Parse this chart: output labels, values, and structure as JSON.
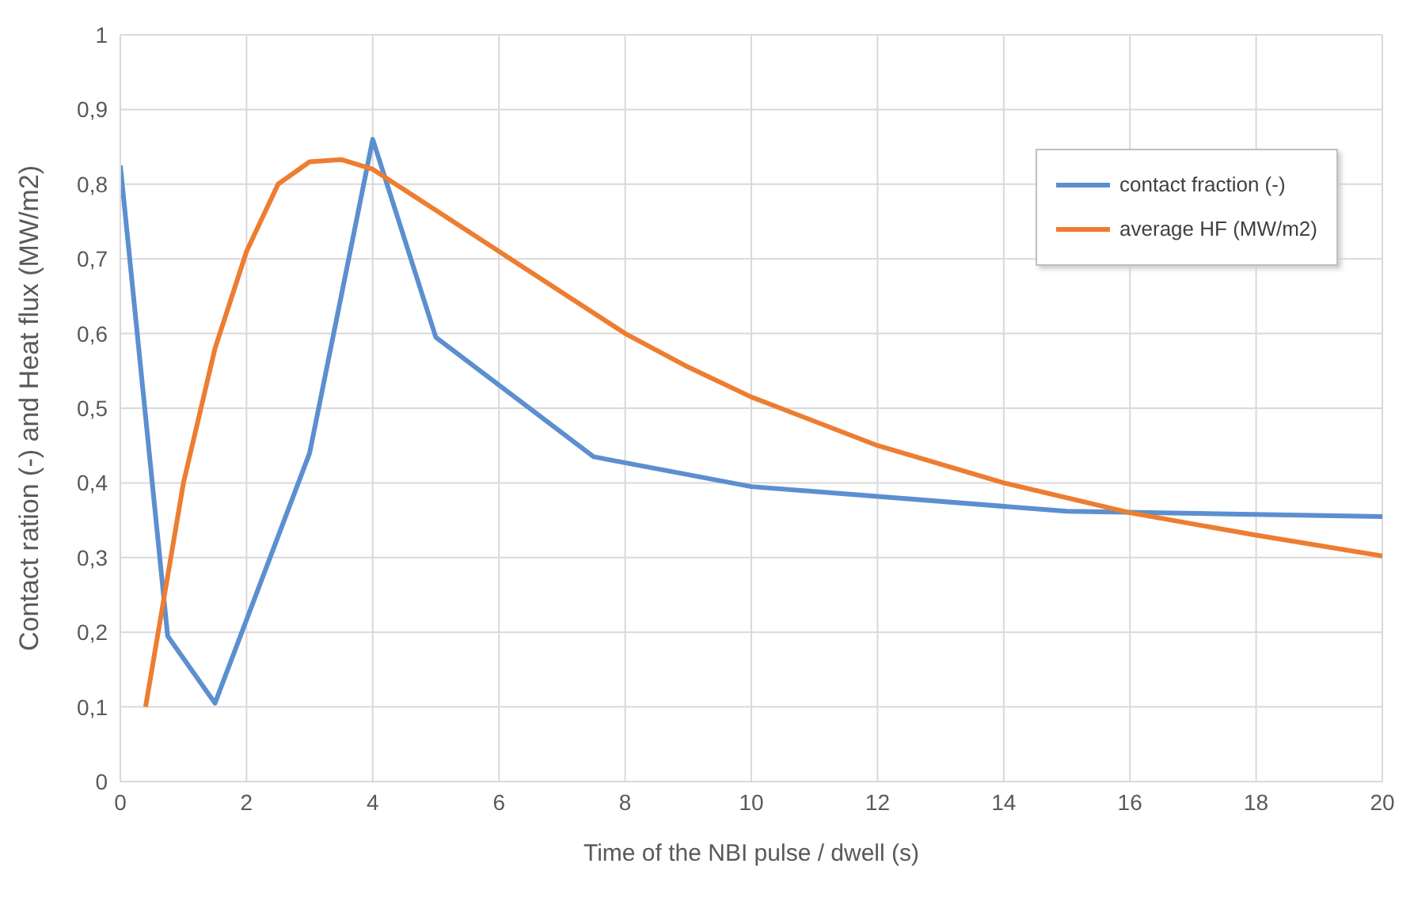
{
  "chart_data": {
    "type": "line",
    "xlabel": "Time of the NBI pulse / dwell (s)",
    "ylabel": "Contact ration (-)    and    Heat flux (MW/m2)",
    "xlim": [
      0,
      20
    ],
    "xticks": [
      0,
      2,
      4,
      6,
      8,
      10,
      12,
      14,
      16,
      18,
      20
    ],
    "ylim": [
      0,
      1
    ],
    "yticks": [
      0,
      {
        "value": 0.1,
        "label": "0,1"
      },
      {
        "value": 0.2,
        "label": "0,2"
      },
      {
        "value": 0.3,
        "label": "0,3"
      },
      {
        "value": 0.4,
        "label": "0,4"
      },
      {
        "value": 0.5,
        "label": "0,5"
      },
      {
        "value": 0.6,
        "label": "0,6"
      },
      {
        "value": 0.7,
        "label": "0,7"
      },
      {
        "value": 0.8,
        "label": "0,8"
      },
      {
        "value": 0.9,
        "label": "0,9"
      },
      1
    ],
    "grid": true,
    "legend": "top right",
    "marker": "none",
    "line_style": "solid",
    "series": [
      {
        "name": "contact fraction (-)",
        "color": "#5b8fd0",
        "x": [
          0,
          0.75,
          1.5,
          3,
          4,
          5,
          7.5,
          10,
          15,
          20
        ],
        "values": [
          0.825,
          0.195,
          0.105,
          0.44,
          0.86,
          0.595,
          0.435,
          0.395,
          0.362,
          0.355
        ]
      },
      {
        "name": "average HF (MW/m2)",
        "color": "#ed7d31",
        "x": [
          0.4,
          1,
          1.5,
          2,
          2.5,
          3,
          3.5,
          4,
          5,
          6,
          7,
          8,
          9,
          10,
          12,
          14,
          16,
          18,
          20
        ],
        "values": [
          0.1,
          0.4,
          0.58,
          0.71,
          0.8,
          0.83,
          0.833,
          0.82,
          0.765,
          0.71,
          0.655,
          0.6,
          0.555,
          0.515,
          0.45,
          0.4,
          0.36,
          0.33,
          0.302
        ]
      }
    ]
  }
}
